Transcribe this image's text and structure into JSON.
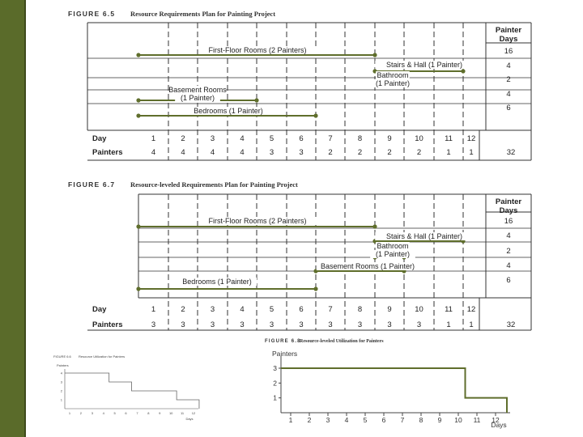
{
  "figure_65": {
    "fig_label": "FIGURE 6.5",
    "title": "Resource Requirements Plan for Painting Project",
    "header": [
      "Painter",
      "Days"
    ],
    "tasks": [
      {
        "label": "First-Floor Rooms (2 Painters)",
        "days": "16"
      },
      {
        "label": "Stairs & Hall (1 Painter)",
        "days": "4"
      },
      {
        "label": [
          "Bathroom",
          "(1 Painter)"
        ],
        "days": "2"
      },
      {
        "label": [
          "Basement Rooms",
          "(1 Painter)"
        ],
        "days": "4"
      },
      {
        "label": "Bedrooms (1 Painter)",
        "days": "6"
      }
    ],
    "day_label": "Day",
    "days": [
      "1",
      "2",
      "3",
      "4",
      "5",
      "6",
      "7",
      "8",
      "9",
      "10",
      "11",
      "12"
    ],
    "painters_label": "Painters",
    "painters": [
      "4",
      "4",
      "4",
      "4",
      "3",
      "3",
      "2",
      "2",
      "2",
      "2",
      "1",
      "1"
    ],
    "total": "32"
  },
  "figure_67": {
    "fig_label": "FIGURE 6.7",
    "title": "Resource-leveled Requirements Plan for Painting Project",
    "header": [
      "Painter",
      "Days"
    ],
    "tasks": [
      {
        "label": "First-Floor Rooms (2 Painters)",
        "days": "16"
      },
      {
        "label": "Stairs & Hall (1 Painter)",
        "days": "4"
      },
      {
        "label": [
          "Bathroom",
          "(1 Painter)"
        ],
        "days": "2"
      },
      {
        "label": "Basement Rooms (1 Painter)",
        "days": "4"
      },
      {
        "label": "Bedrooms (1 Painter)",
        "days": "6"
      }
    ],
    "day_label": "Day",
    "days": [
      "1",
      "2",
      "3",
      "4",
      "5",
      "6",
      "7",
      "8",
      "9",
      "10",
      "11",
      "12"
    ],
    "painters_label": "Painters",
    "painters": [
      "3",
      "3",
      "3",
      "3",
      "3",
      "3",
      "3",
      "3",
      "3",
      "3",
      "1",
      "1"
    ],
    "total": "32"
  },
  "figure_68": {
    "fig_label": "FIGURE 6.8",
    "title": "Resource-leveled Utilization for Painters",
    "ylabel": "Painters",
    "xlabel": "Days"
  },
  "figure_66": {
    "fig_label": "FIGURE 6.6",
    "title": "Resource Utilization for Painters",
    "ylabel": "Painters",
    "xlabel": "Days"
  },
  "chart_data": [
    {
      "type": "line",
      "title": "Resource-leveled Utilization for Painters",
      "xlabel": "Days",
      "ylabel": "Painters",
      "x": [
        1,
        2,
        3,
        4,
        5,
        6,
        7,
        8,
        9,
        10,
        11,
        12
      ],
      "x_ticks": [
        "1",
        "2",
        "3",
        "4",
        "5",
        "6",
        "7",
        "8",
        "9",
        "10",
        "11",
        "12"
      ],
      "y_ticks": [
        "1",
        "2",
        "3"
      ],
      "ylim": [
        0,
        3.6
      ],
      "series": [
        {
          "values": [
            3,
            3,
            3,
            3,
            3,
            3,
            3,
            3,
            3,
            3,
            1,
            1
          ]
        }
      ],
      "grid": false
    },
    {
      "type": "line",
      "title": "Resource Utilization for Painters",
      "xlabel": "Days",
      "ylabel": "Painters",
      "x": [
        1,
        2,
        3,
        4,
        5,
        6,
        7,
        8,
        9,
        10,
        11,
        12
      ],
      "x_ticks": [
        "1",
        "2",
        "3",
        "4",
        "5",
        "6",
        "7",
        "8",
        "9",
        "10",
        "11",
        "12"
      ],
      "y_ticks": [
        "1",
        "2",
        "3",
        "4"
      ],
      "ylim": [
        0,
        4.6
      ],
      "series": [
        {
          "values": [
            4,
            4,
            4,
            4,
            3,
            3,
            2,
            2,
            2,
            2,
            1,
            1
          ]
        }
      ],
      "grid": false
    }
  ],
  "colors": {
    "bar": "#5f6e2c",
    "side_bar": "#5a6b2a"
  }
}
